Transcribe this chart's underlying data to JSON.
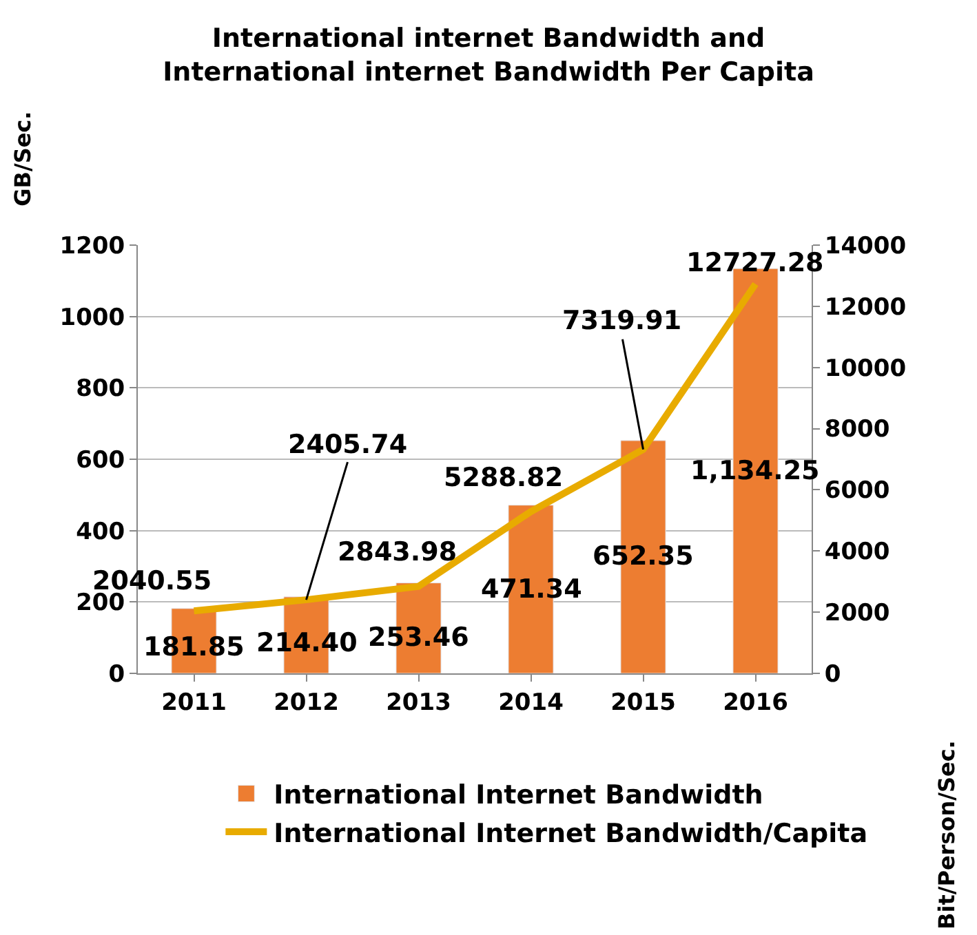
{
  "chart_data": {
    "type": "bar",
    "title": "International internet Bandwidth and\nInternational internet Bandwidth Per Capita",
    "ylabel": "GB/Sec.",
    "y2label": "Bit/Person/Sec.",
    "categories": [
      "2011",
      "2012",
      "2013",
      "2014",
      "2015",
      "2016"
    ],
    "series": [
      {
        "name": "International Internet Bandwidth",
        "color": "#ed7d31",
        "values": [
          181.85,
          214.4,
          253.46,
          471.34,
          652.35,
          1134.25
        ],
        "value_labels": [
          "181.85",
          "214.40",
          "253.46",
          "471.34",
          "652.35",
          "1,134.25"
        ]
      },
      {
        "name": "International Internet Bandwidth/Capita",
        "type": "line",
        "axis": "y2",
        "color": "#e8ab00",
        "marker": "none",
        "values": [
          2040.55,
          2405.74,
          2843.98,
          5288.82,
          7319.91,
          12727.28
        ],
        "value_labels": [
          "2040.55",
          "2405.74",
          "2843.98",
          "5288.82",
          "7319.91",
          "12727.28"
        ]
      }
    ],
    "ylim": [
      0,
      1200
    ],
    "yticks": [
      0,
      200,
      400,
      600,
      800,
      1000,
      1200
    ],
    "y2lim": [
      0,
      14000
    ],
    "y2ticks": [
      0,
      2000,
      4000,
      6000,
      8000,
      10000,
      12000,
      14000
    ],
    "grid": "y",
    "legend": "bottom"
  }
}
